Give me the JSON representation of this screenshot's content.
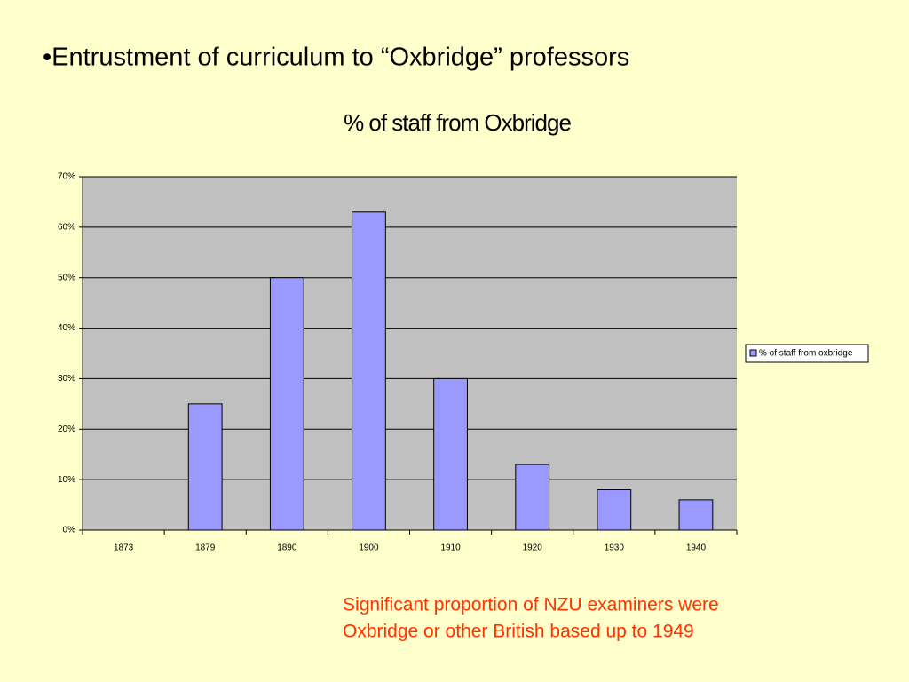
{
  "header": {
    "title": "•Entrustment of curriculum to “Oxbridge” professors"
  },
  "chart_data": {
    "type": "bar",
    "title": "% of staff from Oxbridge",
    "categories": [
      "1873",
      "1879",
      "1890",
      "1900",
      "1910",
      "1920",
      "1930",
      "1940"
    ],
    "series": [
      {
        "name": "% of staff from oxbridge",
        "color": "#9999ff",
        "values": [
          0,
          25,
          50,
          63,
          30,
          13,
          8,
          6
        ]
      }
    ],
    "ylim": [
      0,
      70
    ],
    "yticks": [
      {
        "value": 0,
        "label": "0%"
      },
      {
        "value": 10,
        "label": "10%"
      },
      {
        "value": 20,
        "label": "20%"
      },
      {
        "value": 30,
        "label": "30%"
      },
      {
        "value": 40,
        "label": "40%"
      },
      {
        "value": 50,
        "label": "50%"
      },
      {
        "value": 60,
        "label": "60%"
      },
      {
        "value": 70,
        "label": "70%"
      }
    ],
    "grid": true,
    "legend": "right"
  },
  "annotation": {
    "lines": [
      "Significant proportion of NZU examiners were",
      "Oxbridge or other British based up to 1949"
    ]
  }
}
